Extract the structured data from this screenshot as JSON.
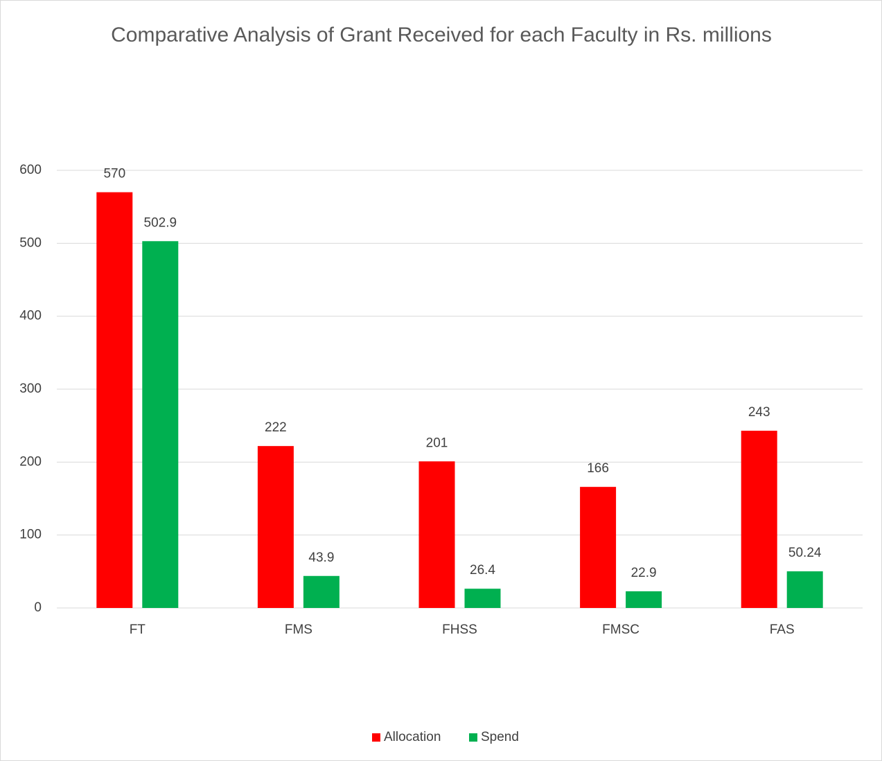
{
  "chart_data": {
    "type": "bar",
    "title": "Comparative Analysis of Grant Received for each Faculty in Rs. millions",
    "categories": [
      "FT",
      "FMS",
      "FHSS",
      "FMSC",
      "FAS"
    ],
    "series": [
      {
        "name": "Allocation",
        "color": "#ff0000",
        "values": [
          570,
          222,
          201,
          166,
          243
        ]
      },
      {
        "name": "Spend",
        "color": "#00b050",
        "values": [
          502.9,
          43.9,
          26.4,
          22.9,
          50.24
        ]
      }
    ],
    "ylim": [
      0,
      600
    ],
    "yticks": [
      0,
      100,
      200,
      300,
      400,
      500,
      600
    ],
    "grid": true,
    "legend": "bottom"
  }
}
